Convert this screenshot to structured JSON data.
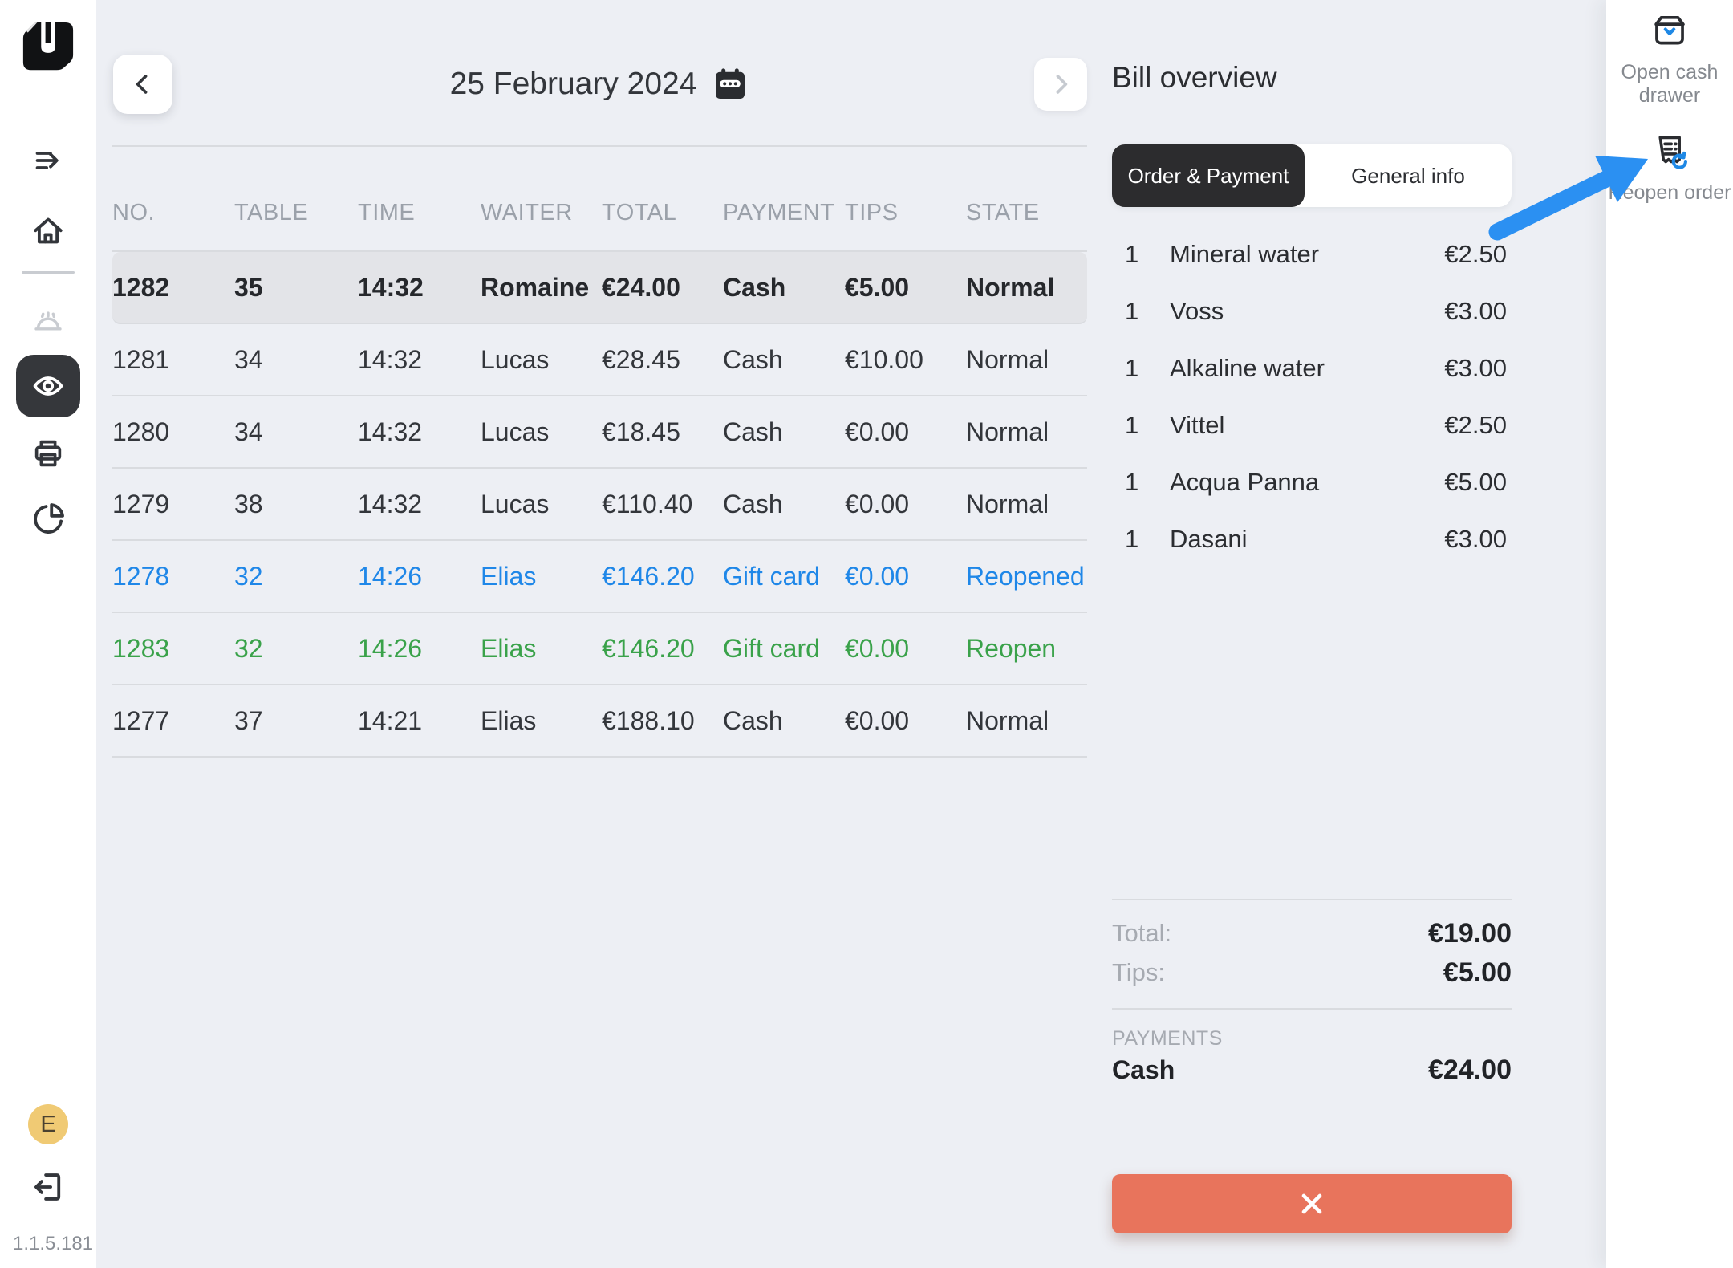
{
  "app": {
    "version": "1.1.5.181"
  },
  "sidebar": {
    "logo": "untill-logo",
    "nav": [
      {
        "id": "transfer",
        "icon": "transfer-arrow-icon",
        "state": "default"
      },
      {
        "id": "home",
        "icon": "home-icon",
        "state": "default"
      },
      {
        "id": "restaurant",
        "icon": "cloche-icon",
        "state": "disabled"
      },
      {
        "id": "bill-overview",
        "icon": "eye-icon",
        "state": "active"
      },
      {
        "id": "print",
        "icon": "printer-icon",
        "state": "default"
      },
      {
        "id": "reports",
        "icon": "pie-chart-icon",
        "state": "default"
      }
    ],
    "user_initial": "E",
    "version": "1.1.5.181"
  },
  "header": {
    "date": "25 February 2024"
  },
  "table": {
    "columns": [
      "NO.",
      "TABLE",
      "TIME",
      "WAITER",
      "TOTAL",
      "PAYMENT",
      "TIPS",
      "STATE"
    ],
    "rows": [
      {
        "no": "1282",
        "table": "35",
        "time": "14:32",
        "waiter": "Romaine",
        "total": "€24.00",
        "payment": "Cash",
        "tips": "€5.00",
        "state": "Normal",
        "variant": "selected"
      },
      {
        "no": "1281",
        "table": "34",
        "time": "14:32",
        "waiter": "Lucas",
        "total": "€28.45",
        "payment": "Cash",
        "tips": "€10.00",
        "state": "Normal",
        "variant": "default"
      },
      {
        "no": "1280",
        "table": "34",
        "time": "14:32",
        "waiter": "Lucas",
        "total": "€18.45",
        "payment": "Cash",
        "tips": "€0.00",
        "state": "Normal",
        "variant": "default"
      },
      {
        "no": "1279",
        "table": "38",
        "time": "14:32",
        "waiter": "Lucas",
        "total": "€110.40",
        "payment": "Cash",
        "tips": "€0.00",
        "state": "Normal",
        "variant": "default"
      },
      {
        "no": "1278",
        "table": "32",
        "time": "14:26",
        "waiter": "Elias",
        "total": "€146.20",
        "payment": "Gift card",
        "tips": "€0.00",
        "state": "Reopened",
        "variant": "reopened"
      },
      {
        "no": "1283",
        "table": "32",
        "time": "14:26",
        "waiter": "Elias",
        "total": "€146.20",
        "payment": "Gift card",
        "tips": "€0.00",
        "state": "Reopen",
        "variant": "reopen"
      },
      {
        "no": "1277",
        "table": "37",
        "time": "14:21",
        "waiter": "Elias",
        "total": "€188.10",
        "payment": "Cash",
        "tips": "€0.00",
        "state": "Normal",
        "variant": "default"
      }
    ]
  },
  "bill": {
    "title": "Bill overview",
    "tabs": [
      {
        "label": "Order & Payment",
        "active": true
      },
      {
        "label": "General info",
        "active": false
      }
    ],
    "items": [
      {
        "qty": "1",
        "name": "Mineral water",
        "price": "€2.50"
      },
      {
        "qty": "1",
        "name": "Voss",
        "price": "€3.00"
      },
      {
        "qty": "1",
        "name": "Alkaline water",
        "price": "€3.00"
      },
      {
        "qty": "1",
        "name": "Vittel",
        "price": "€2.50"
      },
      {
        "qty": "1",
        "name": "Acqua Panna",
        "price": "€5.00"
      },
      {
        "qty": "1",
        "name": "Dasani",
        "price": "€3.00"
      }
    ],
    "totals": {
      "total_label": "Total:",
      "total_value": "€19.00",
      "tips_label": "Tips:",
      "tips_value": "€5.00"
    },
    "payments": {
      "section_label": "PAYMENTS",
      "rows": [
        {
          "method": "Cash",
          "amount": "€24.00"
        }
      ]
    }
  },
  "quick_actions": {
    "open_cash_drawer": "Open cash\ndrawer",
    "reopen_order": "Reopen order"
  },
  "icons": {
    "close": "x-cross",
    "calendar": "calendar",
    "back": "chevron-left",
    "next": "chevron-right",
    "annotation": "blue-arrow-pointing-to-reopen-order"
  },
  "colors": {
    "background": "#edeff4",
    "panel_white": "#ffffff",
    "text_dark": "#2b2d31",
    "text_gray": "#9ba1aa",
    "selected_row_bg": "#e3e4e8",
    "divider": "#d9dbdf",
    "accent_blue": "#1f87e8",
    "accent_green": "#3aa24a",
    "danger_red": "#e8745c",
    "tab_active_bg": "#2c2c2e",
    "avatar_yellow": "#f0ca74",
    "annotation_arrow_blue": "#2b90f2",
    "icon_accent_blue": "#1e88e5"
  }
}
